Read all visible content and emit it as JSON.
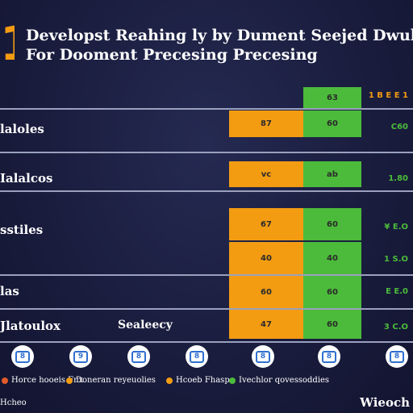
{
  "header": {
    "title_line1": "Developst Reahing ly by Dument Seejed Dwuly",
    "title_line2": "For Dooment Precesing Precesing",
    "index": "1"
  },
  "top_bar": {
    "label": "63",
    "pct": "1 B E E 1"
  },
  "chart_data": {
    "type": "bar",
    "title": "Developst Reahing ly by Dument Seejed Dwuly For Dooment Precesing Precesing",
    "categories": [
      "laloles",
      "Ialalcos",
      "sstiles",
      "",
      "las",
      "Jlatoulox"
    ],
    "series": [
      {
        "name": "Hcoeb Fhasp",
        "color": "#f39c12",
        "labels": [
          "87",
          "vc",
          "67",
          "40",
          "60",
          "47"
        ]
      },
      {
        "name": "Ivechlor qovessoddies",
        "color": "#4cbb3b",
        "labels": [
          "60",
          "ab",
          "60",
          "40",
          "60",
          "60"
        ]
      }
    ],
    "pct_labels": [
      "C60",
      "1.80",
      "¥ E.O",
      "1 S.O",
      "E E.0",
      "3 C.O"
    ]
  },
  "extra_label": "Sealeecy",
  "icons": [
    "8",
    "9",
    "8",
    "8",
    "8",
    "8",
    "8"
  ],
  "legend": [
    {
      "label": "Horce hooeis Fnx",
      "color": "#e05a2a"
    },
    {
      "label": "Doneran reyeuolies",
      "color": "#f39c12"
    },
    {
      "label": "Hcoeb Fhasp",
      "color": "#f39c12"
    },
    {
      "label": "Ivechlor qovessoddies",
      "color": "#4cbb3b"
    }
  ],
  "footer": {
    "left": "Hcheo",
    "brand": "Wieoch"
  }
}
